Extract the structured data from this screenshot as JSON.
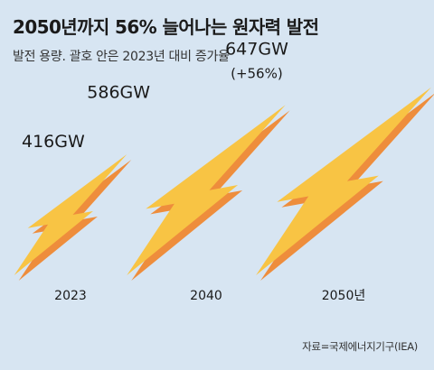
{
  "header": {
    "title": "2050년까지 56% 늘어나는 원자력 발전",
    "subtitle": "발전 용량. 괄호 안은 2023년 대비 증가율"
  },
  "source": "자료=국제에너지기구(IEA)",
  "colors": {
    "background": "#d7e5f2",
    "bolt_fill": "#f8c444",
    "bolt_shadow": "#ee8d3c",
    "text": "#1a1a1a"
  },
  "chart_data": {
    "type": "bar",
    "mark": "lightning-bolt-icon",
    "categories": [
      "2023",
      "2040",
      "2050년"
    ],
    "values": [
      416,
      586,
      647
    ],
    "value_labels": [
      "416GW",
      "586GW",
      "647GW"
    ],
    "unit": "GW",
    "annotations": [
      {
        "category": "2050년",
        "text": "(+56%)"
      }
    ],
    "title": "2050년까지 56% 늘어나는 원자력 발전",
    "subtitle": "발전 용량. 괄호 안은 2023년 대비 증가율",
    "xlabel": "",
    "ylabel": "",
    "grid": false,
    "legend": "none"
  }
}
